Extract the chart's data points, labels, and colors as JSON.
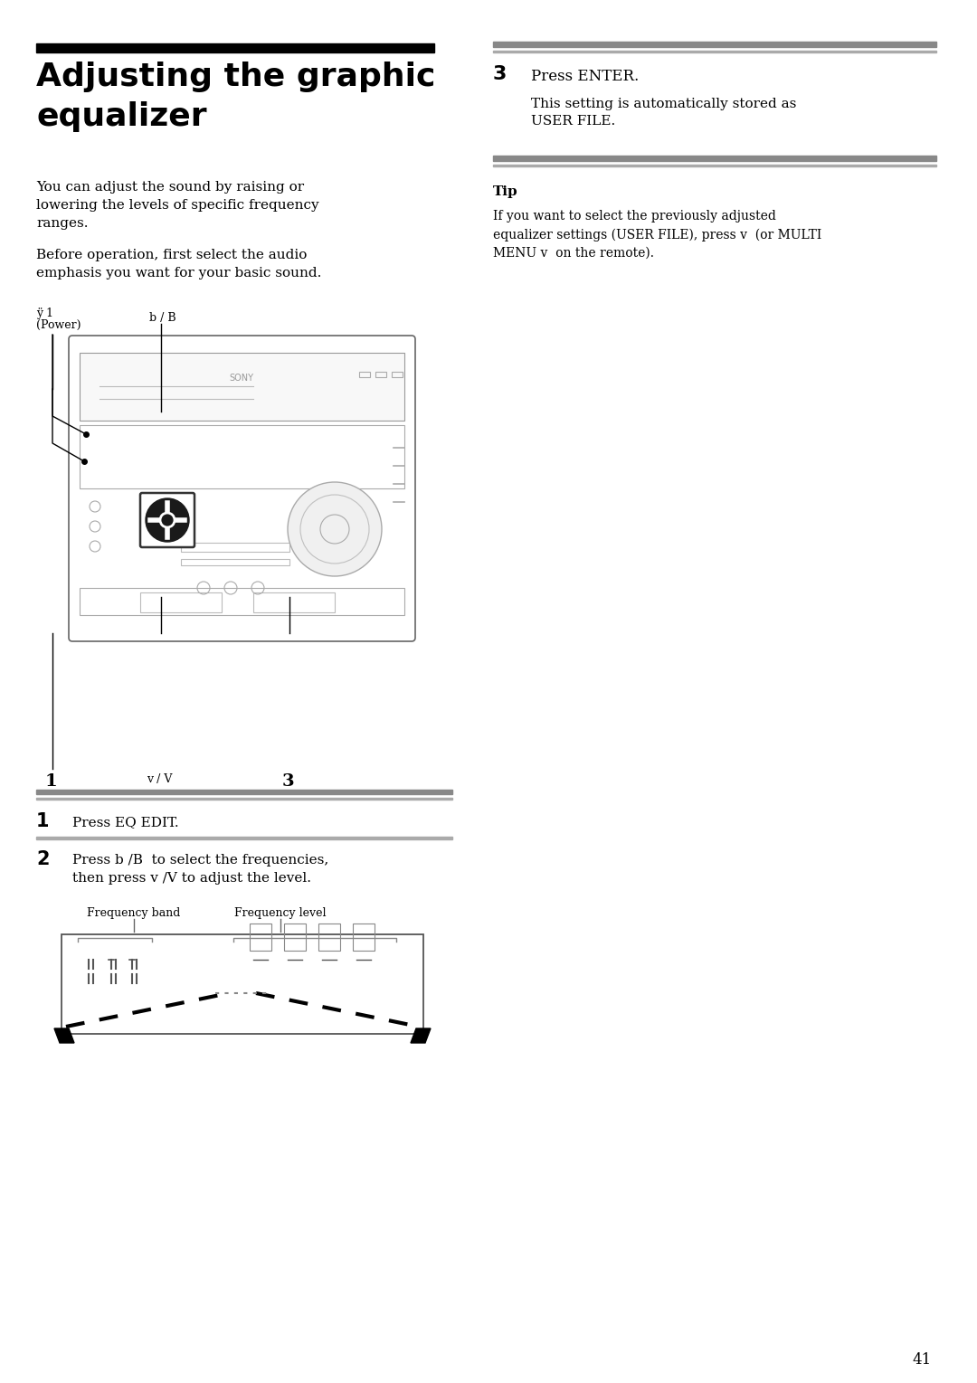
{
  "bg_color": "#ffffff",
  "title_line1": "Adjusting the graphic",
  "title_line2": "equalizer",
  "title_bar_color": "#000000",
  "body_text_1": "You can adjust the sound by raising or\nlowering the levels of specific frequency\nranges.",
  "body_text_2": "Before operation, first select the audio\nemphasis you want for your basic sound.",
  "label_power_line1": "ÿ 1",
  "label_power_line2": "(Power)",
  "label_b": "b / B",
  "label_1": "1",
  "label_v": "v / V",
  "label_3": "3",
  "step1_num": "1",
  "step1_text": "Press EQ EDIT.",
  "step2_num": "2",
  "step2_text": "Press b /B  to select the frequencies,\nthen press v /V to adjust the level.",
  "step3_num": "3",
  "step3_text": "Press ENTER.",
  "step3_sub": "This setting is automatically stored as\nUSER FILE.",
  "tip_title": "Tip",
  "tip_text": "If you want to select the previously adjusted\nequalizer settings (USER FILE), press v  (or MULTI\nMENU v  on the remote).",
  "freq_band_label": "Frequency band",
  "freq_level_label": "Frequency level",
  "page_number": "41",
  "gray_bar_color": "#888888",
  "separator_color": "#aaaaaa"
}
